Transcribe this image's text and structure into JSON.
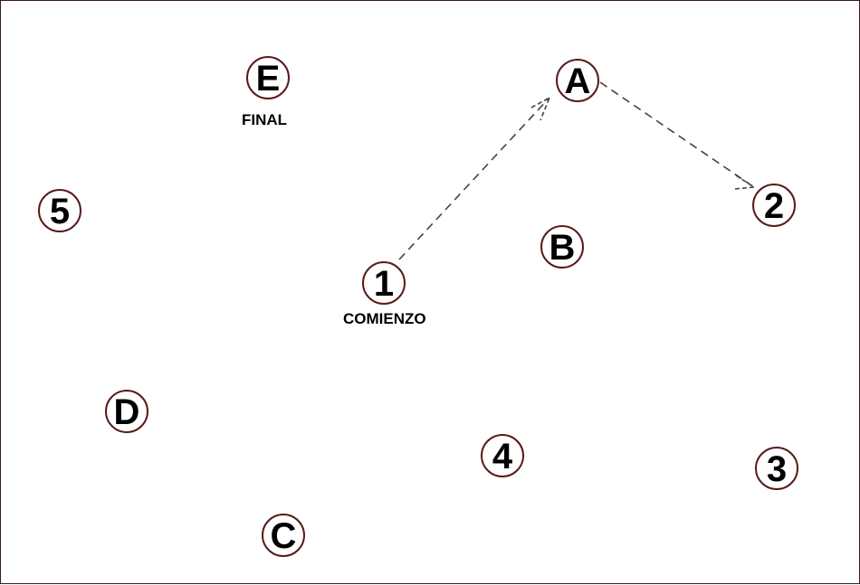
{
  "nodes": {
    "E": "E",
    "A": "A",
    "n5": "5",
    "n2": "2",
    "B": "B",
    "n1": "1",
    "D": "D",
    "n4": "4",
    "n3": "3",
    "C": "C"
  },
  "captions": {
    "final": "FINAL",
    "start": "COMIENZO"
  },
  "arrows": [
    {
      "from": "1",
      "to": "A",
      "style": "dashed"
    },
    {
      "from": "A",
      "to": "2",
      "style": "dashed"
    }
  ],
  "colors": {
    "circle_border": "#5a1a1a",
    "text": "#000000",
    "arrow": "#444444"
  }
}
